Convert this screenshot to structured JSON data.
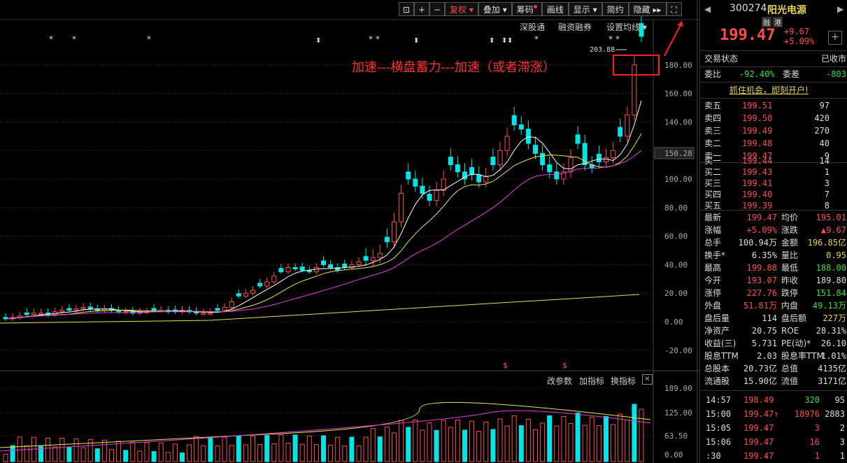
{
  "toolbar": {
    "items": [
      "复权",
      "叠加",
      "筹码",
      "画线",
      "显示",
      "简约",
      "隐藏"
    ],
    "fullscreen_icon": "fullscreen-icon",
    "lock_icon": "lock-icon",
    "zoom_in_icon": "plus-icon",
    "zoom_out_icon": "minus-icon"
  },
  "subbar": {
    "items": [
      "深股通",
      "融资融券",
      "设置均线"
    ]
  },
  "annotation": {
    "text": "加速---横盘蓄力---加速（或者滞涨）",
    "high_label": "203.88"
  },
  "price_axis": {
    "labels": [
      "180.00",
      "160.00",
      "140.00",
      "120.00",
      "100.00",
      "80.00",
      "60.00",
      "40.00",
      "20.00",
      "0.00",
      "-20.00"
    ],
    "current": "150.28"
  },
  "volume_bar": {
    "items": [
      "改参数",
      "加指标",
      "换指标"
    ],
    "close_icon": "close-icon",
    "labels": [
      "189.00",
      "125.00",
      "63.50",
      "0.00"
    ]
  },
  "stock": {
    "code": "300274",
    "name": "阳光电源",
    "tags": [
      "融",
      "港"
    ],
    "price": "199.47",
    "change": "+9.67",
    "change_pct": "+5.09%",
    "status_label": "交易状态",
    "status_value": "已收市",
    "weibi_label": "委比",
    "weibi_value": "-92.40%",
    "weicha_label": "委差",
    "weicha_value": "-803",
    "promo": "抓住机会，即刻开户!"
  },
  "order_book": {
    "asks": [
      {
        "label": "卖五",
        "price": "199.51",
        "vol": "97"
      },
      {
        "label": "卖四",
        "price": "199.50",
        "vol": "420"
      },
      {
        "label": "卖三",
        "price": "199.49",
        "vol": "270"
      },
      {
        "label": "卖二",
        "price": "199.48",
        "vol": "40"
      },
      {
        "label": "卖一",
        "price": "199.47",
        "vol": "9"
      }
    ],
    "bids": [
      {
        "label": "买一",
        "price": "199.44",
        "vol": "14"
      },
      {
        "label": "买二",
        "price": "199.43",
        "vol": "1"
      },
      {
        "label": "买三",
        "price": "199.41",
        "vol": "3"
      },
      {
        "label": "买四",
        "price": "199.40",
        "vol": "7"
      },
      {
        "label": "买五",
        "price": "199.39",
        "vol": "8"
      }
    ]
  },
  "stats": [
    {
      "l1": "最新",
      "v1": "199.47",
      "c1": "red",
      "l2": "均价",
      "v2": "195.01",
      "c2": "red"
    },
    {
      "l1": "涨幅",
      "v1": "+5.09%",
      "c1": "red",
      "l2": "涨跌",
      "v2": "▲9.67",
      "c2": "red"
    },
    {
      "l1": "总手",
      "v1": "100.94万",
      "c1": "white",
      "l2": "金额",
      "v2": "196.85亿",
      "c2": "yellow"
    },
    {
      "l1": "换手*",
      "v1": "6.35%",
      "c1": "white",
      "l2": "量比",
      "v2": "0.95",
      "c2": "yellow"
    },
    {
      "l1": "最高",
      "v1": "199.88",
      "c1": "red",
      "l2": "最低",
      "v2": "188.00",
      "c2": "green"
    },
    {
      "l1": "今开",
      "v1": "193.07",
      "c1": "red",
      "l2": "昨收",
      "v2": "189.80",
      "c2": "white"
    },
    {
      "l1": "涨停",
      "v1": "227.76",
      "c1": "red",
      "l2": "跌停",
      "v2": "151.84",
      "c2": "green"
    },
    {
      "l1": "外盘",
      "v1": "51.81万",
      "c1": "red",
      "l2": "内盘",
      "v2": "49.13万",
      "c2": "green"
    },
    {
      "l1": "盘后量",
      "v1": "114",
      "c1": "white",
      "l2": "盘后额",
      "v2": "227万",
      "c2": "yellow"
    },
    {
      "l1": "净资产",
      "v1": "20.75",
      "c1": "white",
      "l2": "ROE",
      "v2": "28.31%",
      "c2": "white"
    },
    {
      "l1": "收益(三)",
      "v1": "5.731",
      "c1": "white",
      "l2": "PE(动)*",
      "v2": "26.10",
      "c2": "white"
    },
    {
      "l1": "股息TTM",
      "v1": "2.03",
      "c1": "white",
      "l2": "股息率TTM",
      "v2": "1.01%",
      "c2": "white"
    },
    {
      "l1": "总股本",
      "v1": "20.73亿",
      "c1": "white",
      "l2": "总值",
      "v2": "4135亿",
      "c2": "white"
    },
    {
      "l1": "流通股",
      "v1": "15.90亿",
      "c1": "white",
      "l2": "流值",
      "v2": "3171亿",
      "c2": "white"
    }
  ],
  "ticks": [
    {
      "time": "14:57",
      "price": "198.49",
      "vol": "320",
      "num": "95",
      "vc": "green"
    },
    {
      "time": "15:00",
      "price": "199.47↑",
      "vol": "18976",
      "num": "2883",
      "vc": "red"
    },
    {
      "time": "15:05",
      "price": "199.47",
      "vol": "3",
      "num": "2",
      "vc": "red"
    },
    {
      "time": "15:06",
      "price": "199.47",
      "vol": "16",
      "num": "3",
      "vc": "red"
    },
    {
      "time": ":30",
      "price": "199.47",
      "vol": "1",
      "num": "1",
      "vc": "red"
    }
  ]
}
